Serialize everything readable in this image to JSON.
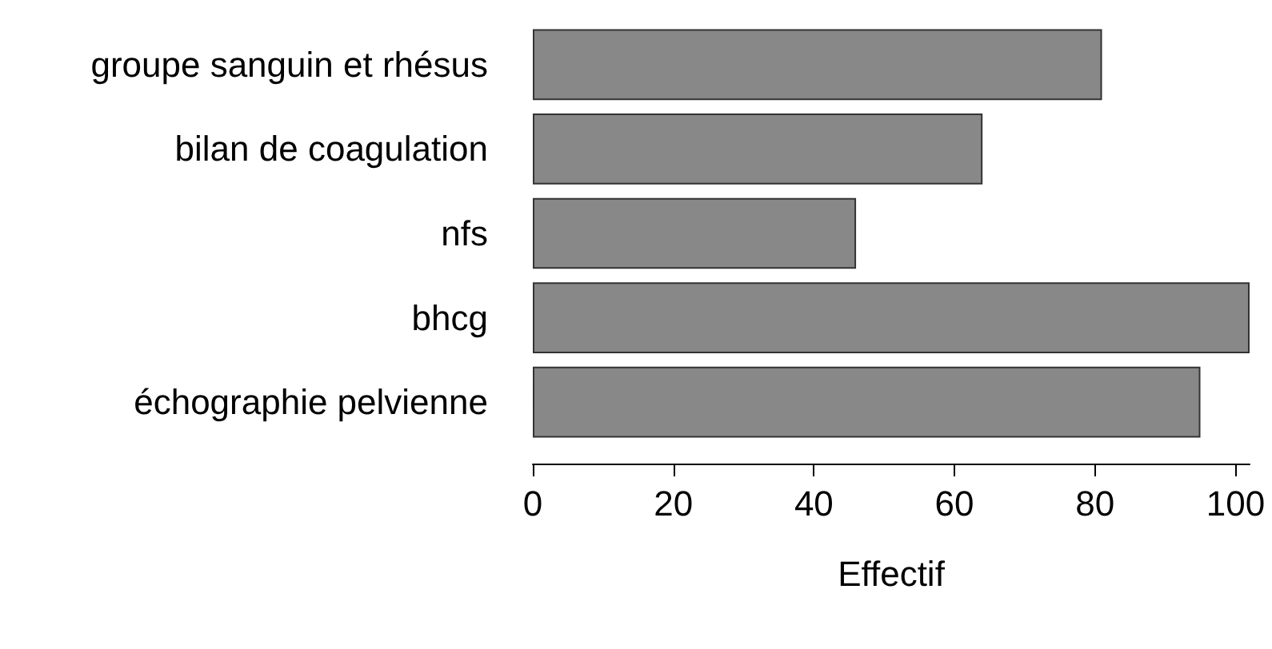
{
  "chart_data": {
    "type": "bar",
    "orientation": "horizontal",
    "xlabel": "Effectif",
    "categories": [
      "groupe sanguin et rhésus",
      "bilan de coagulation",
      "nfs",
      "bhcg",
      "échographie pelvienne"
    ],
    "values": [
      81,
      64,
      46,
      102,
      95
    ],
    "color": "#888888",
    "xlim": [
      0,
      102
    ],
    "xticks": [
      0,
      20,
      40,
      60,
      80,
      100
    ],
    "grid": false
  }
}
